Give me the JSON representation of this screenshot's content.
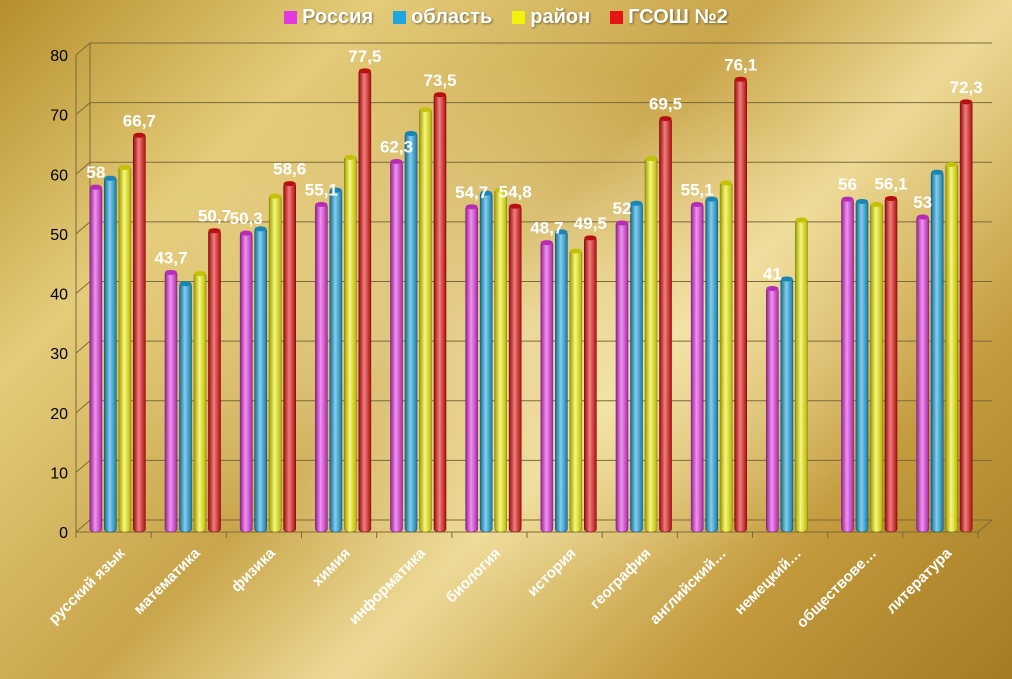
{
  "chart_data": {
    "type": "bar",
    "title": "",
    "xlabel": "",
    "ylabel": "",
    "ylim": [
      0,
      80
    ],
    "yticks": [
      "0",
      "10",
      "20",
      "30",
      "40",
      "50",
      "60",
      "70",
      "80"
    ],
    "grid": true,
    "legend_position": "top",
    "categories": [
      "русский язык",
      "математика",
      "физика",
      "химия",
      "информатика",
      "биология",
      "история",
      "география",
      "английский…",
      "немецкий…",
      "обществове…",
      "литература"
    ],
    "series": [
      {
        "name": "Россия",
        "color": "#e238e2",
        "values": [
          58,
          43.7,
          50.3,
          55.1,
          62.3,
          54.7,
          48.7,
          52,
          55.1,
          41,
          56,
          53
        ]
      },
      {
        "name": "область",
        "color": "#1ea6e0",
        "values": [
          59.5,
          41.8,
          51,
          57.5,
          67,
          57,
          50.5,
          55.3,
          56,
          42.6,
          55.6,
          60.5
        ]
      },
      {
        "name": "район",
        "color": "#f2f20c",
        "values": [
          61.3,
          43.5,
          56.5,
          63,
          71,
          57.5,
          47.3,
          62.8,
          58.7,
          52.5,
          55.1,
          61.8
        ]
      },
      {
        "name": "ГСОШ №2",
        "color": "#e61414",
        "values": [
          66.7,
          50.7,
          58.6,
          77.5,
          73.5,
          54.8,
          49.5,
          69.5,
          76.1,
          null,
          56.1,
          72.3
        ]
      }
    ],
    "data_labels": [
      {
        "category": 0,
        "series": 0,
        "text": "58"
      },
      {
        "category": 0,
        "series": 3,
        "text": "66,7"
      },
      {
        "category": 1,
        "series": 0,
        "text": "43,7"
      },
      {
        "category": 1,
        "series": 3,
        "text": "50,7"
      },
      {
        "category": 2,
        "series": 0,
        "text": "50,3"
      },
      {
        "category": 2,
        "series": 3,
        "text": "58,6"
      },
      {
        "category": 3,
        "series": 0,
        "text": "55,1"
      },
      {
        "category": 3,
        "series": 3,
        "text": "77,5"
      },
      {
        "category": 4,
        "series": 0,
        "text": "62,3"
      },
      {
        "category": 4,
        "series": 3,
        "text": "73,5"
      },
      {
        "category": 5,
        "series": 0,
        "text": "54,7"
      },
      {
        "category": 5,
        "series": 3,
        "text": "54,8"
      },
      {
        "category": 6,
        "series": 0,
        "text": "48,7"
      },
      {
        "category": 6,
        "series": 3,
        "text": "49,5"
      },
      {
        "category": 7,
        "series": 0,
        "text": "52"
      },
      {
        "category": 7,
        "series": 3,
        "text": "69,5"
      },
      {
        "category": 8,
        "series": 0,
        "text": "55,1"
      },
      {
        "category": 8,
        "series": 3,
        "text": "76,1"
      },
      {
        "category": 9,
        "series": 0,
        "text": "41"
      },
      {
        "category": 10,
        "series": 0,
        "text": "56"
      },
      {
        "category": 10,
        "series": 3,
        "text": "56,1"
      },
      {
        "category": 11,
        "series": 0,
        "text": "53"
      },
      {
        "category": 11,
        "series": 3,
        "text": "72,3"
      }
    ]
  }
}
